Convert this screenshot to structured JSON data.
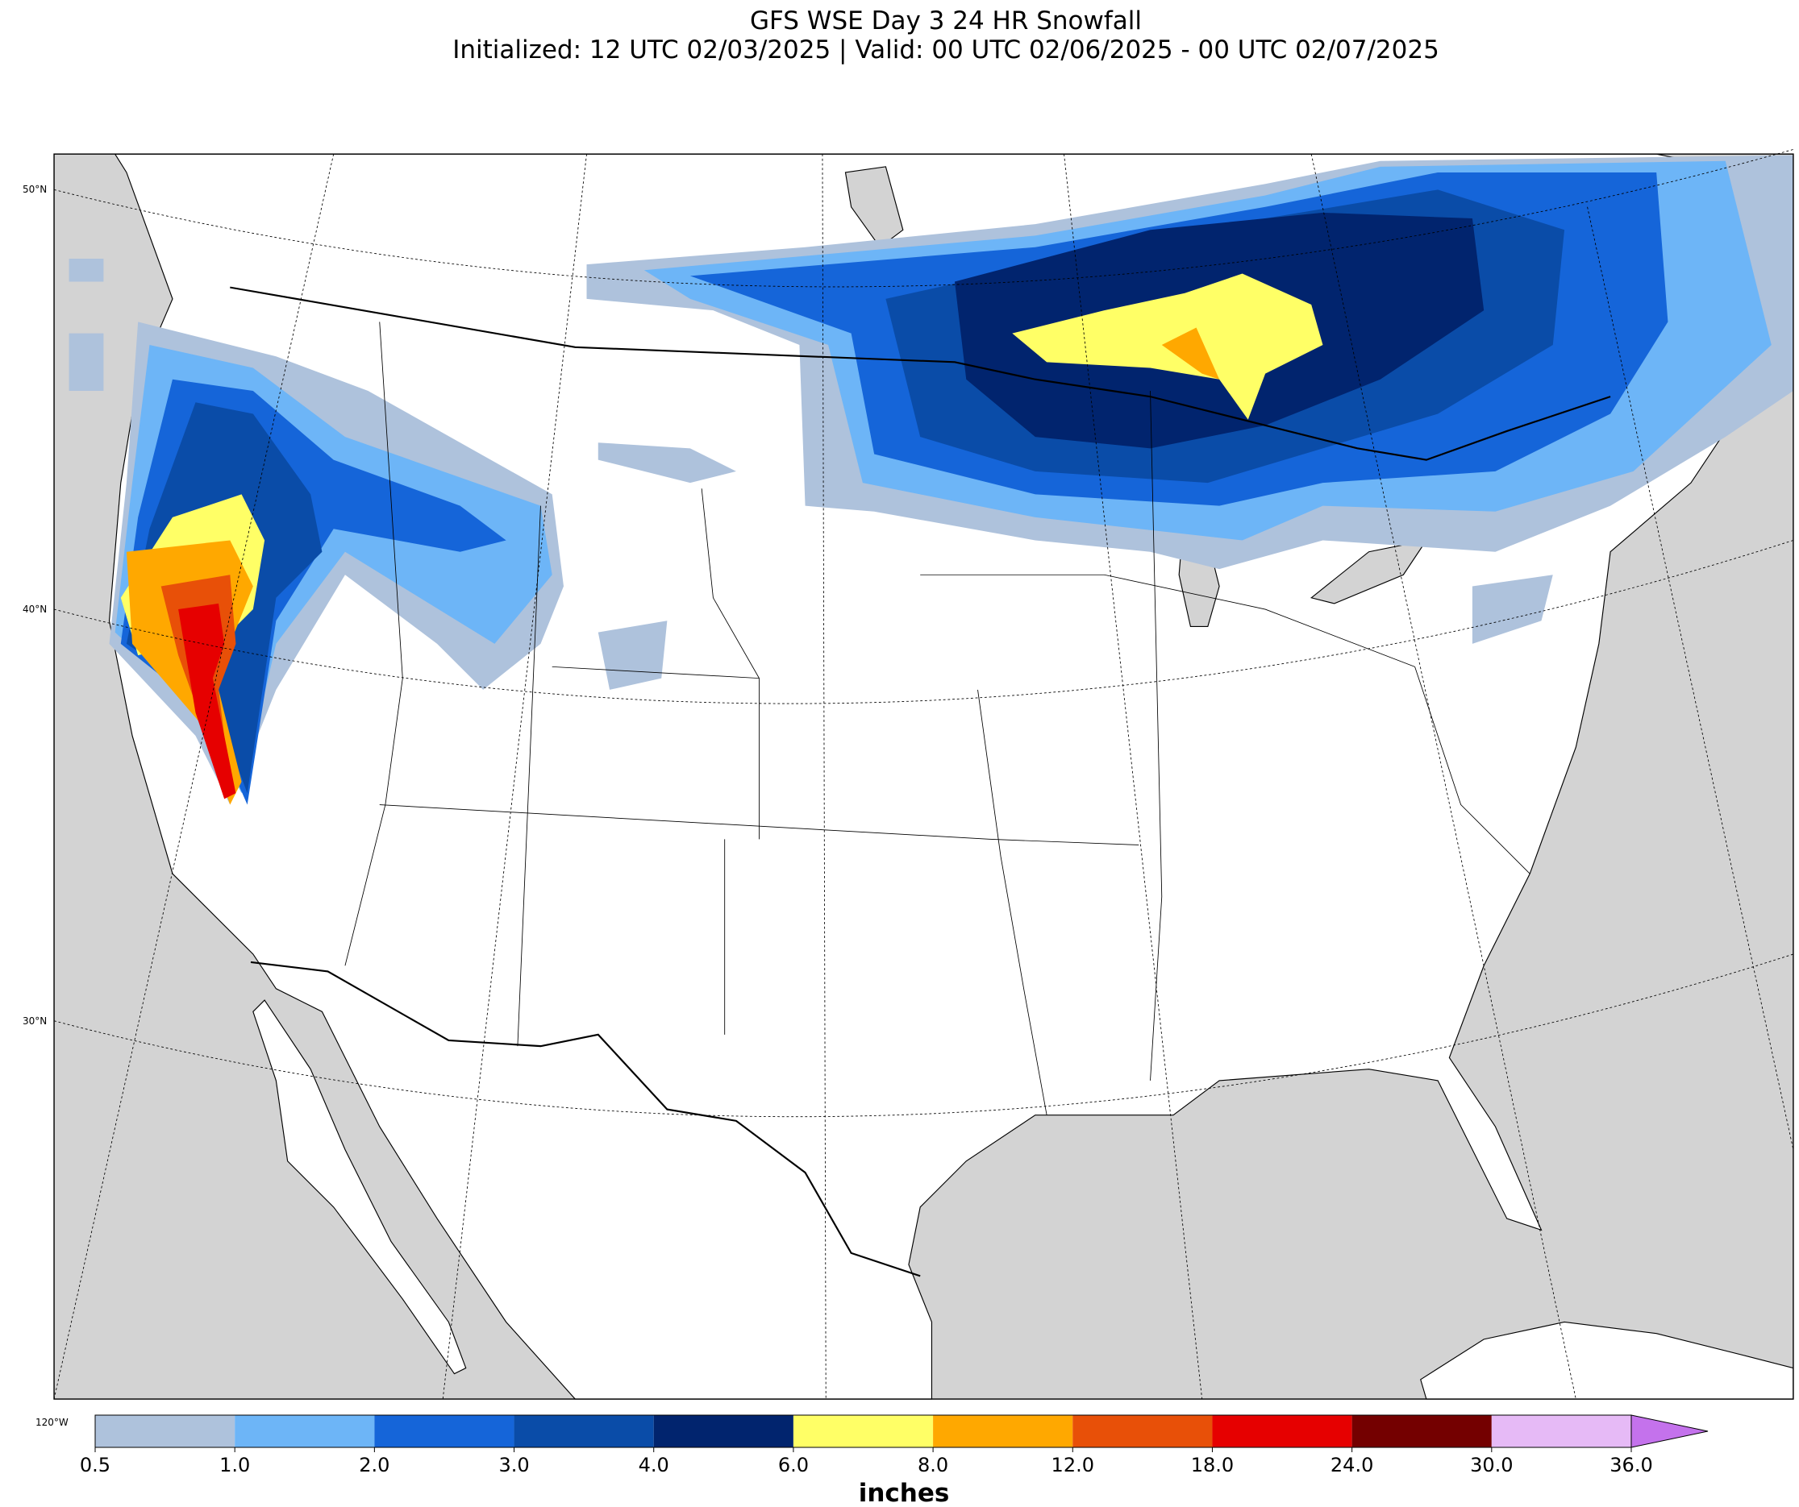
{
  "header": {
    "title": "GFS WSE Day 3 24 HR Snowfall",
    "subtitle": "Initialized: 12 UTC 02/03/2025 | Valid: 00 UTC 02/06/2025 - 00 UTC 02/07/2025"
  },
  "map": {
    "lat_labels": [
      "50°N",
      "40°N",
      "30°N"
    ],
    "lon_labels": [
      "120°W"
    ]
  },
  "colorbar": {
    "label": "inches",
    "levels": [
      "0.5",
      "1.0",
      "2.0",
      "3.0",
      "4.0",
      "6.0",
      "8.0",
      "12.0",
      "18.0",
      "24.0",
      "30.0",
      "36.0"
    ],
    "colors": [
      "#aec2dc",
      "#6db5f7",
      "#1565d9",
      "#0a4ca8",
      "#01246e",
      "#ffff66",
      "#ffa800",
      "#e85008",
      "#e60000",
      "#740000",
      "#e6baf6",
      "#c472ec"
    ]
  }
}
